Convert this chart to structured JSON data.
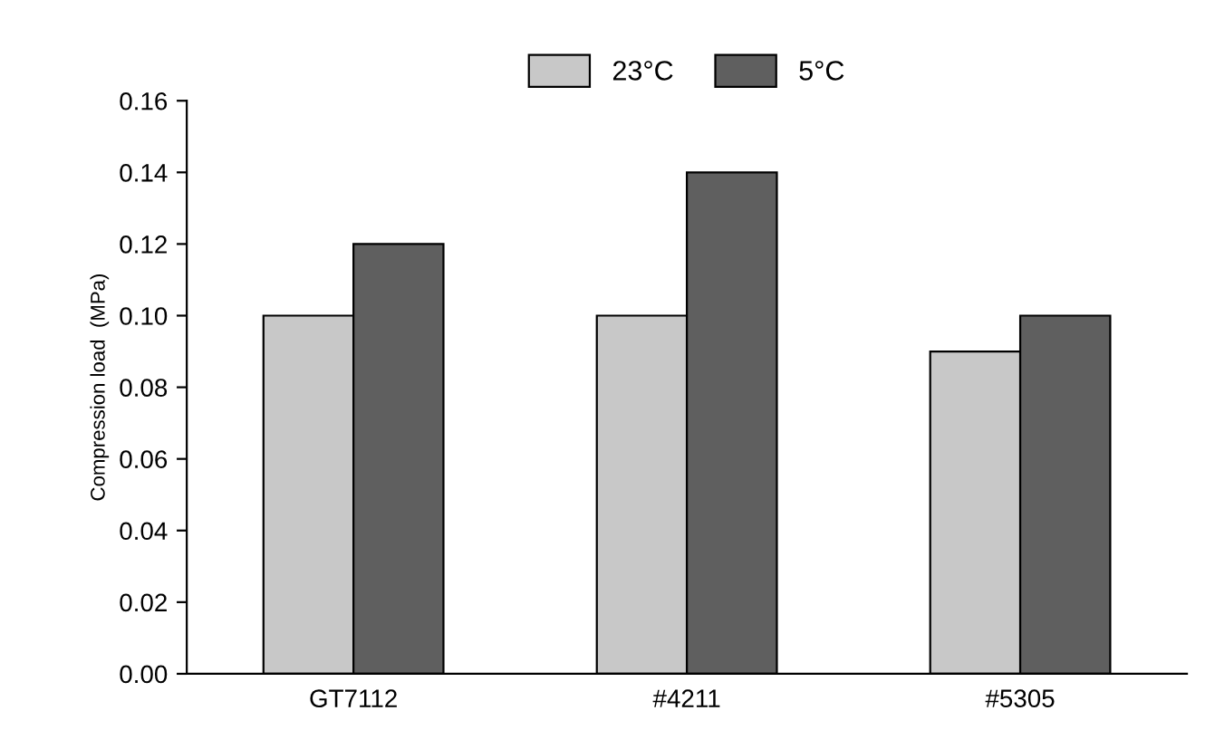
{
  "chart_data": {
    "type": "bar",
    "ylabel": "Compression load  (MPa)",
    "categories": [
      "GT7112",
      "#4211",
      "#5305"
    ],
    "series": [
      {
        "name": "23°C",
        "color": "#c8c8c8",
        "values": [
          0.1,
          0.1,
          0.09
        ]
      },
      {
        "name": "5°C",
        "color": "#5f5f5f",
        "values": [
          0.12,
          0.14,
          0.1
        ]
      }
    ],
    "ylim": [
      0,
      0.16
    ],
    "yticks": [
      {
        "value": 0,
        "label": "0.00"
      },
      {
        "value": 0.02,
        "label": "0.02"
      },
      {
        "value": 0.04,
        "label": "0.04"
      },
      {
        "value": 0.06,
        "label": "0.06"
      },
      {
        "value": 0.08,
        "label": "0.08"
      },
      {
        "value": 0.1,
        "label": "0.10"
      },
      {
        "value": 0.12,
        "label": "0.12"
      },
      {
        "value": 0.14,
        "label": "0.14"
      },
      {
        "value": 0.16,
        "label": "0.16"
      }
    ],
    "grid": false,
    "legend": "top"
  }
}
